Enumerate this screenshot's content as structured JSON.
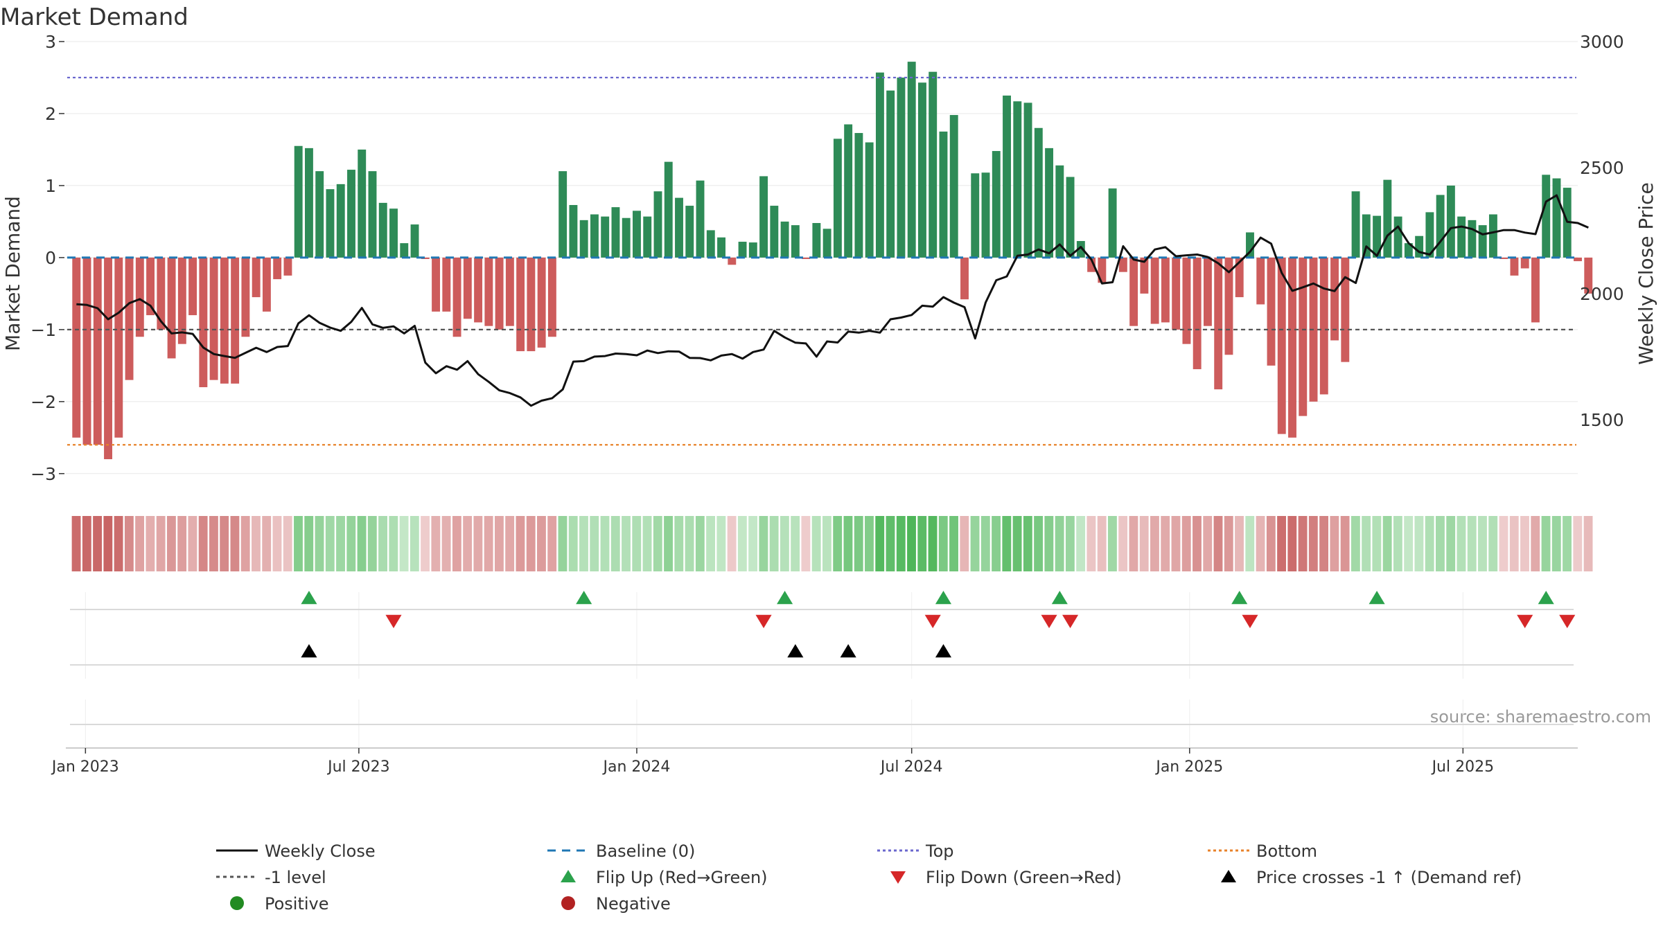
{
  "chart_data": {
    "type": "bar",
    "title": "Market Demand",
    "ylabel_left": "Market Demand",
    "ylabel_right": "Weekly Close Price",
    "ylim_left": [
      -3.3,
      3.0
    ],
    "ylim_right": [
      1200,
      3000
    ],
    "yticks_left": [
      3,
      2,
      1,
      0,
      -1,
      -2,
      -3
    ],
    "yticks_left_labels": [
      "3",
      "2",
      "1",
      "0",
      "−1",
      "−2",
      "−3"
    ],
    "yticks_right": [
      3000,
      2500,
      2000,
      1500
    ],
    "yticks_right_labels": [
      "3000",
      "2500",
      "2000",
      "1500"
    ],
    "x_range": [
      "2022-12-19",
      "2025-09-15"
    ],
    "x_ticks": [
      {
        "date": "2023-01-01",
        "label": "Jan 2023"
      },
      {
        "date": "2023-07-01",
        "label": "Jul 2023"
      },
      {
        "date": "2024-01-01",
        "label": "Jan 2024"
      },
      {
        "date": "2024-07-01",
        "label": "Jul 2024"
      },
      {
        "date": "2025-01-01",
        "label": "Jan 2025"
      },
      {
        "date": "2025-07-01",
        "label": "Jul 2025"
      }
    ],
    "start_week": "2022-12-26",
    "demand": [
      -2.5,
      -2.6,
      -2.6,
      -2.8,
      -2.5,
      -1.7,
      -1.1,
      -0.8,
      -1.0,
      -1.4,
      -1.2,
      -0.8,
      -1.8,
      -1.7,
      -1.75,
      -1.75,
      -1.1,
      -0.55,
      -0.75,
      -0.3,
      -0.25,
      1.55,
      1.52,
      1.2,
      0.95,
      1.02,
      1.22,
      1.5,
      1.2,
      0.76,
      0.68,
      0.2,
      0.46,
      -0.02,
      -0.75,
      -0.75,
      -1.1,
      -0.85,
      -0.9,
      -0.95,
      -1.0,
      -0.95,
      -1.3,
      -1.3,
      -1.25,
      -1.1,
      1.2,
      0.73,
      0.52,
      0.6,
      0.57,
      0.7,
      0.55,
      0.65,
      0.57,
      0.92,
      1.33,
      0.83,
      0.72,
      1.07,
      0.38,
      0.28,
      -0.1,
      0.22,
      0.21,
      1.13,
      0.72,
      0.5,
      0.45,
      -0.02,
      0.48,
      0.4,
      1.65,
      1.85,
      1.73,
      1.6,
      2.57,
      2.32,
      2.5,
      2.72,
      2.43,
      2.58,
      1.75,
      1.98,
      -0.58,
      1.17,
      1.18,
      1.48,
      2.25,
      2.17,
      2.15,
      1.8,
      1.52,
      1.28,
      1.12,
      0.23,
      -0.2,
      -0.35,
      0.96,
      -0.2,
      -0.95,
      -0.5,
      -0.92,
      -0.9,
      -1.0,
      -1.2,
      -1.55,
      -0.95,
      -1.83,
      -1.35,
      -0.55,
      0.35,
      -0.65,
      -1.5,
      -2.45,
      -2.5,
      -2.2,
      -2.0,
      -1.9,
      -1.15,
      -1.45,
      0.92,
      0.6,
      0.58,
      1.08,
      0.57,
      0.2,
      0.3,
      0.63,
      0.87,
      1.0,
      0.57,
      0.52,
      0.45,
      0.6,
      -0.02,
      -0.25,
      -0.15,
      -0.9,
      1.15,
      1.1,
      0.97,
      -0.05,
      -0.5
    ],
    "close": [
      1958,
      1955,
      1942,
      1898,
      1924,
      1962,
      1978,
      1952,
      1890,
      1842,
      1846,
      1840,
      1786,
      1760,
      1752,
      1745,
      1765,
      1785,
      1768,
      1788,
      1792,
      1882,
      1914,
      1884,
      1865,
      1852,
      1888,
      1943,
      1878,
      1864,
      1870,
      1842,
      1872,
      1726,
      1684,
      1712,
      1698,
      1732,
      1680,
      1650,
      1616,
      1605,
      1588,
      1555,
      1575,
      1585,
      1620,
      1730,
      1732,
      1750,
      1752,
      1762,
      1760,
      1755,
      1774,
      1764,
      1771,
      1770,
      1745,
      1744,
      1735,
      1754,
      1760,
      1742,
      1768,
      1778,
      1852,
      1826,
      1805,
      1802,
      1750,
      1810,
      1806,
      1849,
      1845,
      1852,
      1845,
      1898,
      1905,
      1915,
      1952,
      1948,
      1986,
      1964,
      1946,
      1822,
      1965,
      2053,
      2068,
      2150,
      2155,
      2175,
      2160,
      2195,
      2150,
      2185,
      2135,
      2040,
      2045,
      2188,
      2135,
      2126,
      2175,
      2184,
      2148,
      2152,
      2155,
      2145,
      2120,
      2085,
      2125,
      2166,
      2222,
      2198,
      2082,
      2011,
      2025,
      2040,
      2020,
      2010,
      2065,
      2042,
      2187,
      2150,
      2230,
      2266,
      2200,
      2165,
      2155,
      2206,
      2260,
      2266,
      2256,
      2235,
      2243,
      2252,
      2252,
      2242,
      2236,
      2365,
      2390,
      2285,
      2280,
      2262
    ],
    "marker_rows": [
      {
        "name": "Flip Up (Red→Green)",
        "color": "#2ba24c",
        "direction": "up",
        "dates": [
          "2023-05-29",
          "2023-11-27",
          "2024-04-08",
          "2024-07-22",
          "2024-10-07",
          "2025-02-03",
          "2025-05-05",
          "2025-08-25"
        ]
      },
      {
        "name": "Flip Down (Green→Red)",
        "color": "#d62728",
        "direction": "down",
        "dates": [
          "2023-07-24",
          "2024-03-25",
          "2024-07-15",
          "2024-09-30",
          "2024-10-14",
          "2025-02-10",
          "2025-08-11",
          "2025-09-08"
        ]
      },
      {
        "name": "Price crosses -1 ↑ (Demand ref)",
        "color": "#000000",
        "direction": "up",
        "dates": [
          "2023-05-29",
          "2024-04-15",
          "2024-05-20",
          "2024-07-22"
        ]
      }
    ],
    "reference_lines": [
      {
        "name": "Top",
        "value": 2.5,
        "color": "#6a67ce",
        "style": "dotted"
      },
      {
        "name": "-1 level",
        "value": -1,
        "color": "#555555",
        "style": "dashed"
      },
      {
        "name": "Bottom",
        "value": -2.6,
        "color": "#e8822a",
        "style": "dotted"
      },
      {
        "name": "Baseline (0)",
        "value": 0,
        "color": "#1f77b4",
        "style": "dashed"
      }
    ],
    "colors": {
      "positive_bar": "#2e8b57",
      "negative_bar": "#cd5c5c",
      "price_line": "#111111"
    },
    "legend": {
      "placement": "bottom",
      "items": [
        {
          "label": "Weekly Close",
          "kind": "line-solid",
          "color": "#111111"
        },
        {
          "label": "Baseline (0)",
          "kind": "line-dash",
          "color": "#1f77b4"
        },
        {
          "label": "Top",
          "kind": "line-dot",
          "color": "#6a67ce"
        },
        {
          "label": "Bottom",
          "kind": "line-dot",
          "color": "#e8822a"
        },
        {
          "label": "-1 level",
          "kind": "line-dash",
          "color": "#555555"
        },
        {
          "label": "Flip Up (Red→Green)",
          "kind": "triangle-up",
          "color": "#2ba24c"
        },
        {
          "label": "Flip Down (Green→Red)",
          "kind": "triangle-down",
          "color": "#d62728"
        },
        {
          "label": "Price crosses -1 ↑ (Demand ref)",
          "kind": "triangle-up",
          "color": "#000000"
        },
        {
          "label": "Positive",
          "kind": "circle",
          "color": "#228b22"
        },
        {
          "label": "Negative",
          "kind": "circle",
          "color": "#b22222"
        }
      ]
    },
    "annotation": "source: sharemaestro.com"
  }
}
